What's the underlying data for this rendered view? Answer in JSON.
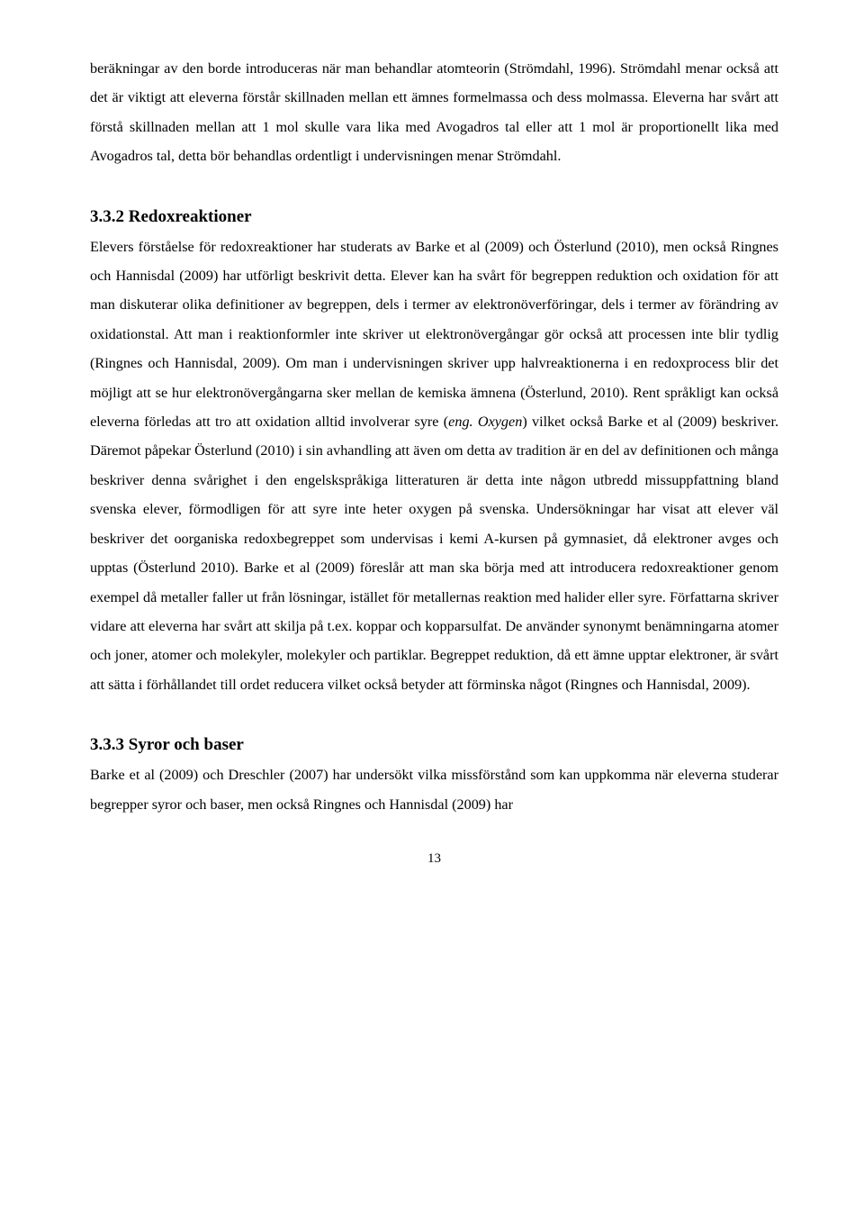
{
  "paragraphs": {
    "p1": "beräkningar av den borde introduceras när man behandlar atomteorin (Strömdahl, 1996). Strömdahl menar också att det är viktigt att eleverna förstår skillnaden mellan ett ämnes formelmassa och dess molmassa. Eleverna har svårt att förstå skillnaden mellan att 1 mol skulle vara lika med Avogadros tal eller att 1 mol är proportionellt lika med Avogadros tal, detta bör behandlas ordentligt i undervisningen menar Strömdahl.",
    "h1": "3.3.2 Redoxreaktioner",
    "p2a": "Elevers förståelse för redoxreaktioner har studerats av Barke et al (2009) och Österlund (2010), men också Ringnes och Hannisdal (2009) har utförligt beskrivit detta. Elever kan ha svårt för begreppen reduktion och oxidation för att man diskuterar olika definitioner av begreppen, dels i termer av elektronöverföringar, dels i termer av förändring av oxidationstal. Att man i reaktionformler inte skriver ut elektronövergångar gör också att processen inte blir tydlig (Ringnes och Hannisdal, 2009). Om man i undervisningen skriver upp halvreaktionerna i en redoxprocess blir det möjligt att se hur elektronövergångarna sker mellan de kemiska ämnena (Österlund, 2010). Rent språkligt kan också eleverna förledas att tro att oxidation alltid involverar syre (",
    "p2_ital": "eng. Oxygen",
    "p2b": ") vilket också Barke et al (2009) beskriver. Däremot påpekar Österlund (2010) i sin avhandling att även om detta av tradition är en del av definitionen och många beskriver denna svårighet i den engelskspråkiga litteraturen är detta inte någon utbredd missuppfattning bland svenska elever, förmodligen för att syre inte heter oxygen på svenska. Undersökningar har visat att elever väl beskriver det oorganiska redoxbegreppet som undervisas i kemi A-kursen på gymnasiet, då elektroner avges och upptas (Österlund 2010). Barke et al (2009) föreslår att man ska börja med att introducera redoxreaktioner genom exempel då metaller faller ut från lösningar, istället för metallernas reaktion med halider eller syre. Författarna skriver vidare att eleverna har svårt att skilja på t.ex. koppar och kopparsulfat. De använder synonymt benämningarna atomer och joner, atomer och molekyler, molekyler och partiklar. Begreppet reduktion, då ett ämne upptar elektroner, är svårt att sätta i förhållandet till ordet reducera vilket också betyder att förminska något (Ringnes och Hannisdal, 2009).",
    "h2": "3.3.3 Syror och baser",
    "p3": "Barke et al (2009) och Dreschler (2007) har undersökt vilka missförstånd som kan uppkomma när eleverna studerar begrepper syror och baser, men också Ringnes och Hannisdal (2009) har",
    "pagenum": "13"
  }
}
